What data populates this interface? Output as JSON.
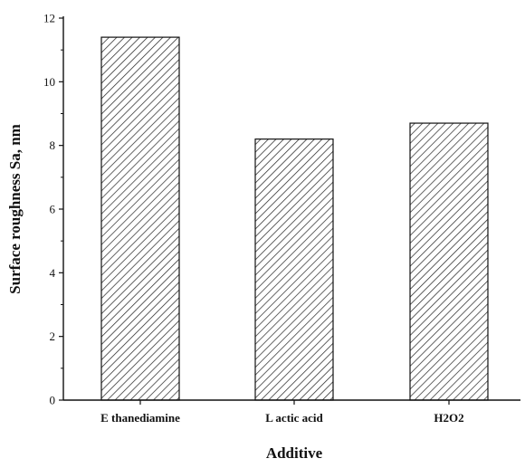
{
  "chart_data": {
    "type": "bar",
    "categories": [
      "E thanediamine",
      "L actic acid",
      "H2O2"
    ],
    "values": [
      11.4,
      8.2,
      8.7
    ],
    "xlabel": "Additive",
    "ylabel": "Surface roughness Sa, nm",
    "ylim": [
      0,
      12
    ],
    "yticks": [
      0,
      2,
      4,
      6,
      8,
      10,
      12
    ],
    "grid": false,
    "legend": "none",
    "bar_fill": "hatched",
    "colors": {
      "bar_stroke": "#111111",
      "hatch": "#222222",
      "axis": "#111111"
    }
  }
}
